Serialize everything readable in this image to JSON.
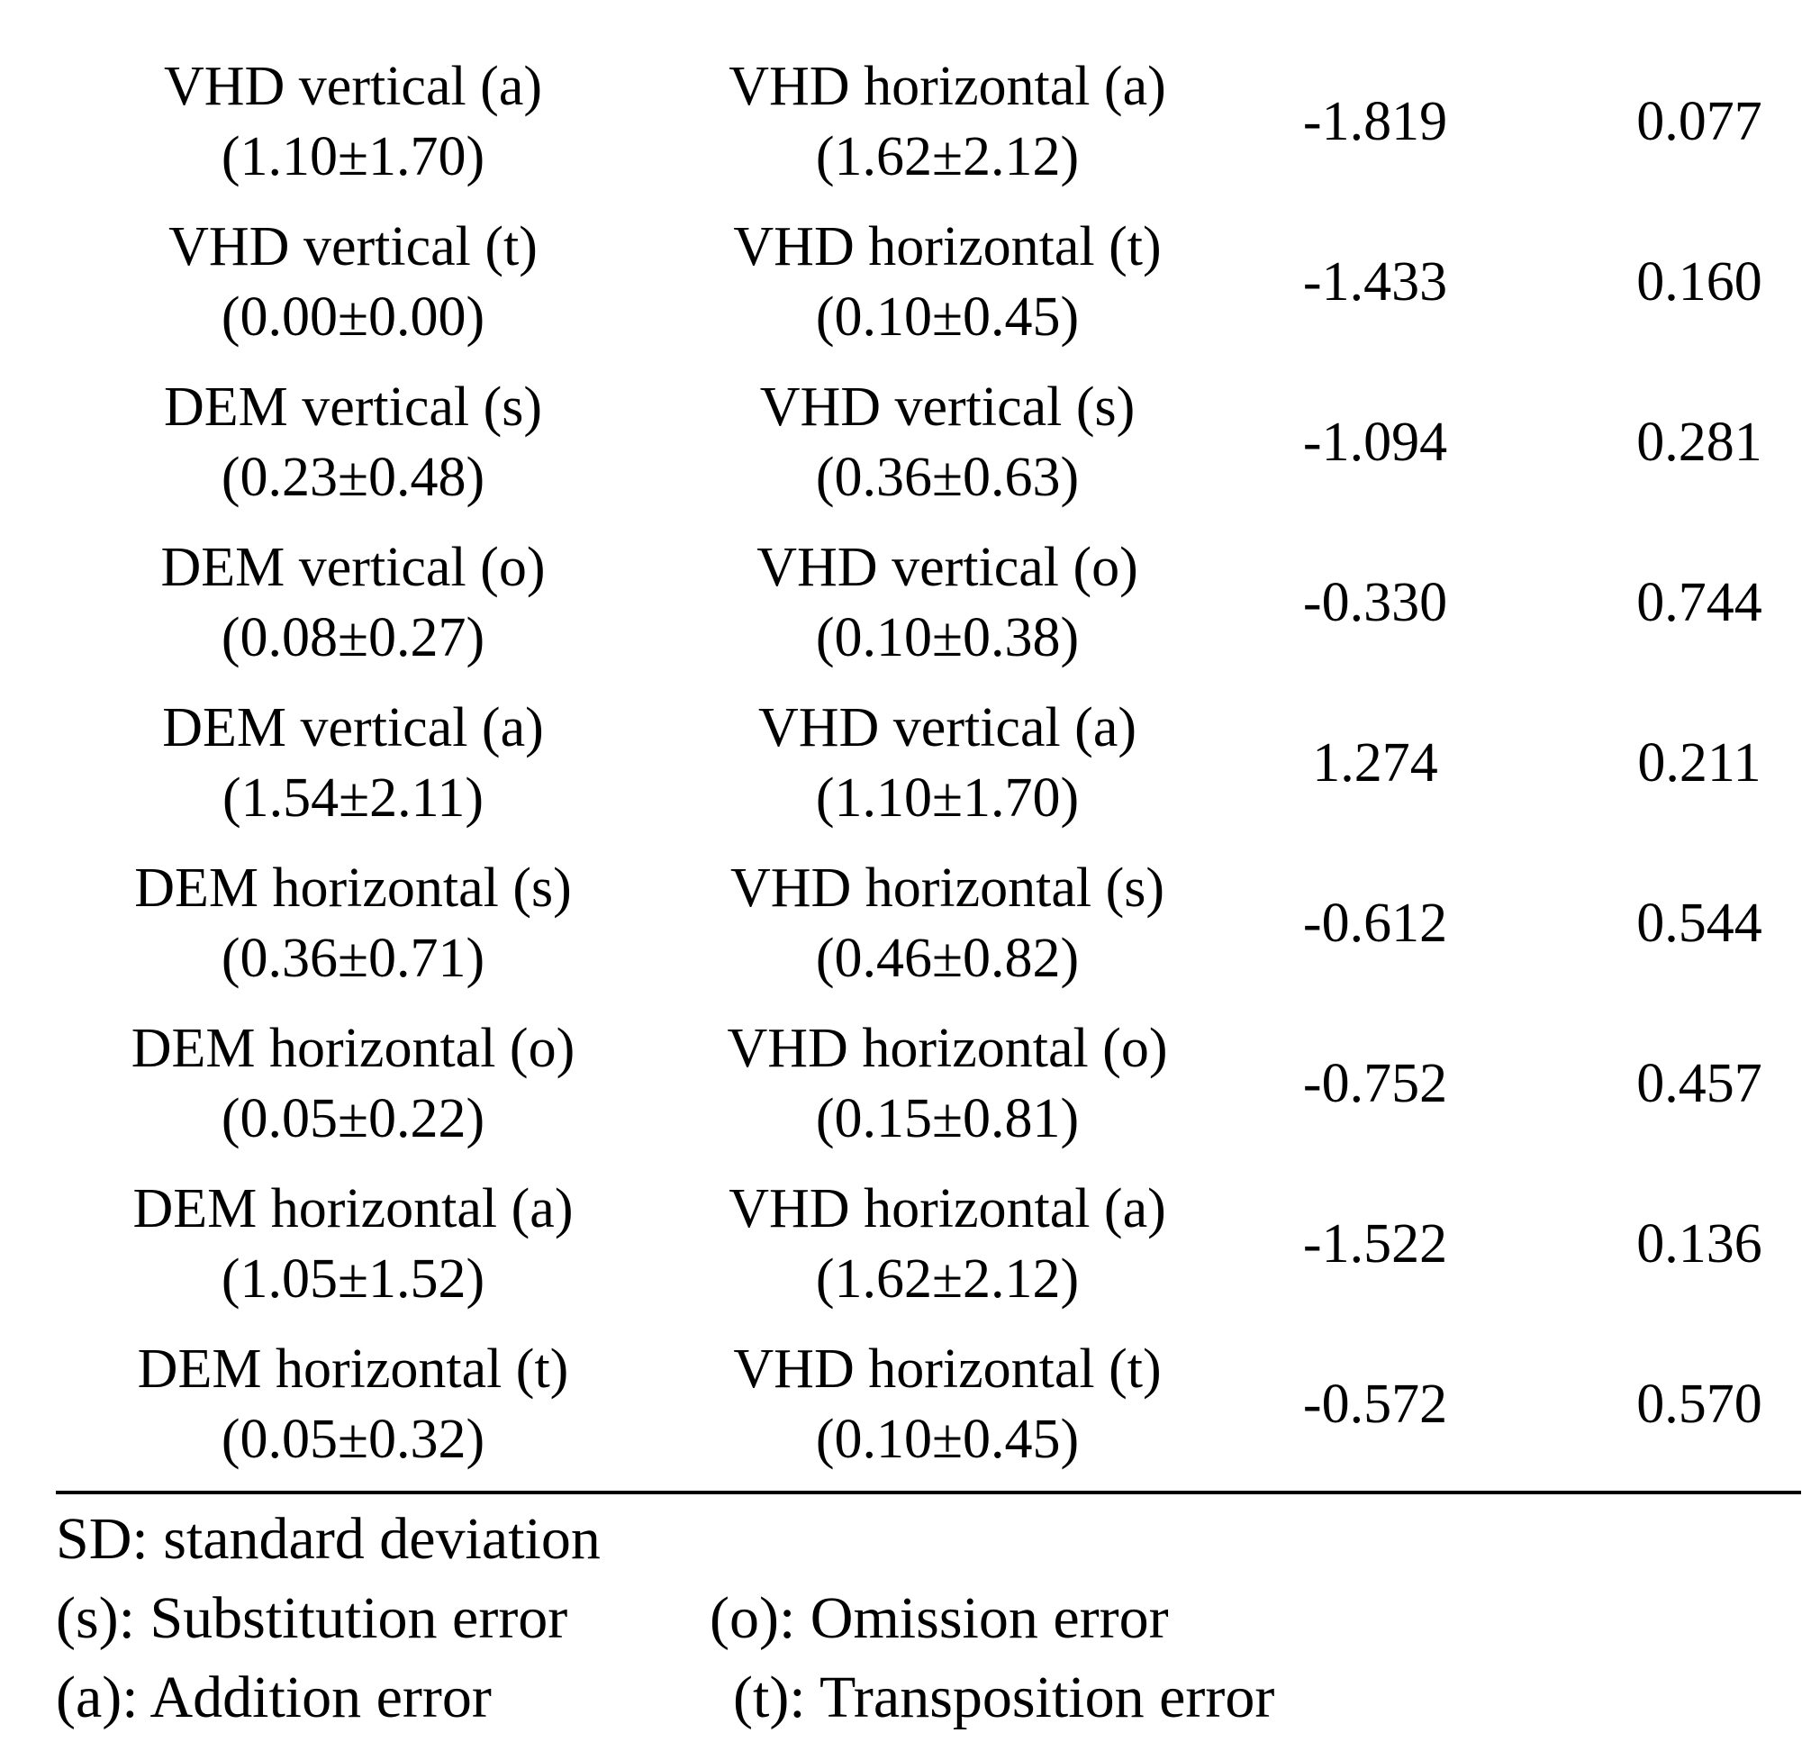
{
  "rows": [
    {
      "group1": {
        "label": "VHD vertical (a)",
        "stat": "(1.10±1.70)"
      },
      "group2": {
        "label": "VHD horizontal (a)",
        "stat": "(1.62±2.12)"
      },
      "t": "-1.819",
      "p": "0.077"
    },
    {
      "group1": {
        "label": "VHD vertical (t)",
        "stat": "(0.00±0.00)"
      },
      "group2": {
        "label": "VHD horizontal (t)",
        "stat": "(0.10±0.45)"
      },
      "t": "-1.433",
      "p": "0.160"
    },
    {
      "group1": {
        "label": "DEM vertical (s)",
        "stat": "(0.23±0.48)"
      },
      "group2": {
        "label": "VHD vertical (s)",
        "stat": "(0.36±0.63)"
      },
      "t": "-1.094",
      "p": "0.281"
    },
    {
      "group1": {
        "label": "DEM vertical (o)",
        "stat": "(0.08±0.27)"
      },
      "group2": {
        "label": "VHD vertical (o)",
        "stat": "(0.10±0.38)"
      },
      "t": "-0.330",
      "p": "0.744"
    },
    {
      "group1": {
        "label": "DEM vertical (a)",
        "stat": "(1.54±2.11)"
      },
      "group2": {
        "label": "VHD vertical (a)",
        "stat": "(1.10±1.70)"
      },
      "t": "1.274",
      "p": "0.211"
    },
    {
      "group1": {
        "label": "DEM horizontal (s)",
        "stat": "(0.36±0.71)"
      },
      "group2": {
        "label": "VHD horizontal (s)",
        "stat": "(0.46±0.82)"
      },
      "t": "-0.612",
      "p": "0.544"
    },
    {
      "group1": {
        "label": "DEM horizontal (o)",
        "stat": "(0.05±0.22)"
      },
      "group2": {
        "label": "VHD horizontal (o)",
        "stat": "(0.15±0.81)"
      },
      "t": "-0.752",
      "p": "0.457"
    },
    {
      "group1": {
        "label": "DEM horizontal (a)",
        "stat": "(1.05±1.52)"
      },
      "group2": {
        "label": "VHD horizontal (a)",
        "stat": "(1.62±2.12)"
      },
      "t": "-1.522",
      "p": "0.136"
    },
    {
      "group1": {
        "label": "DEM horizontal (t)",
        "stat": "(0.05±0.32)"
      },
      "group2": {
        "label": "VHD horizontal (t)",
        "stat": "(0.10±0.45)"
      },
      "t": "-0.572",
      "p": "0.570"
    }
  ],
  "footnotes": {
    "sd": "SD: standard deviation",
    "substitution": "(s): Substitution error",
    "omission": "(o): Omission error",
    "addition": "(a): Addition error",
    "transposition": "(t): Transposition error"
  }
}
